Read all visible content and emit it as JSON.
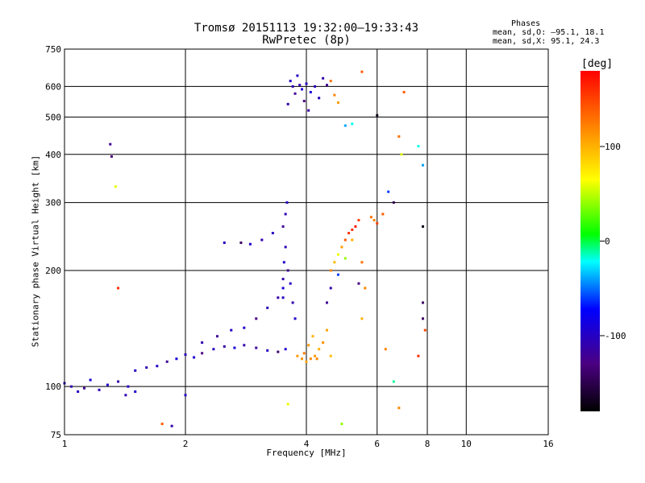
{
  "chart_data": {
    "type": "scatter",
    "title_line1": "Tromsø 20151113 19:32:00–19:33:43",
    "title_line2": "RwPretec (8p)",
    "phases": {
      "heading": "Phases",
      "o_mode": "mean, sd,O: –95.1, 18.1",
      "x_mode": "mean, sd,X:  95.1, 24.3"
    },
    "xlabel": "Frequency [MHz]",
    "ylabel": "Stationary phase Virtual Height [km]",
    "x_scale": "log",
    "y_scale": "log",
    "xlim": [
      1,
      16
    ],
    "ylim": [
      75,
      750
    ],
    "x_ticks": [
      1,
      2,
      4,
      6,
      8,
      10,
      16
    ],
    "y_ticks": [
      75,
      100,
      200,
      300,
      400,
      500,
      600,
      750
    ],
    "grid": true,
    "colorbar": {
      "label": "[deg]",
      "ticks": [
        100,
        0,
        -100
      ],
      "range": [
        -180,
        180
      ]
    },
    "series": [
      {
        "points": [
          [
            1.0,
            102,
            -95
          ],
          [
            1.04,
            100,
            -110
          ],
          [
            1.08,
            97,
            -100
          ],
          [
            1.12,
            99,
            -120
          ],
          [
            1.16,
            104,
            -90
          ],
          [
            1.22,
            98,
            -105
          ],
          [
            1.28,
            101,
            -95
          ],
          [
            1.36,
            103,
            -115
          ],
          [
            1.44,
            100,
            -100
          ],
          [
            1.3,
            425,
            -120
          ],
          [
            1.31,
            395,
            -130
          ],
          [
            1.34,
            330,
            60
          ],
          [
            1.36,
            180,
            160
          ],
          [
            1.5,
            110,
            -95
          ],
          [
            1.6,
            112,
            -110
          ],
          [
            1.7,
            113,
            -100
          ],
          [
            1.8,
            116,
            -120
          ],
          [
            1.9,
            118,
            -90
          ],
          [
            2.0,
            121,
            -105
          ],
          [
            2.1,
            119,
            -95
          ],
          [
            2.2,
            122,
            -130
          ],
          [
            2.35,
            125,
            -100
          ],
          [
            2.5,
            127,
            -115
          ],
          [
            2.65,
            126,
            -90
          ],
          [
            2.8,
            128,
            -110
          ],
          [
            3.0,
            126,
            -120
          ],
          [
            3.2,
            124,
            -100
          ],
          [
            3.4,
            123,
            -140
          ],
          [
            3.55,
            125,
            -95
          ],
          [
            2.2,
            130,
            -110
          ],
          [
            2.4,
            135,
            -120
          ],
          [
            2.6,
            140,
            -95
          ],
          [
            2.8,
            142,
            -100
          ],
          [
            3.0,
            150,
            -130
          ],
          [
            3.2,
            160,
            -105
          ],
          [
            3.4,
            170,
            -115
          ],
          [
            3.5,
            180,
            -90
          ],
          [
            2.5,
            236,
            -100
          ],
          [
            2.75,
            236,
            -140
          ],
          [
            2.9,
            234,
            -95
          ],
          [
            3.1,
            240,
            -110
          ],
          [
            3.3,
            250,
            -100
          ],
          [
            3.5,
            260,
            -120
          ],
          [
            3.55,
            280,
            -105
          ],
          [
            3.58,
            300,
            -100
          ],
          [
            3.5,
            170,
            -100
          ],
          [
            3.5,
            190,
            -110
          ],
          [
            3.52,
            210,
            -95
          ],
          [
            3.55,
            230,
            -105
          ],
          [
            3.6,
            200,
            -120
          ],
          [
            3.65,
            185,
            -100
          ],
          [
            3.7,
            165,
            -110
          ],
          [
            3.75,
            150,
            -95
          ],
          [
            3.8,
            120,
            110
          ],
          [
            3.9,
            118,
            115
          ],
          [
            4.0,
            116,
            105
          ],
          [
            4.1,
            118,
            120
          ],
          [
            4.2,
            120,
            110
          ],
          [
            4.3,
            125,
            100
          ],
          [
            4.4,
            130,
            115
          ],
          [
            4.5,
            140,
            105
          ],
          [
            4.6,
            120,
            95
          ],
          [
            3.95,
            122,
            125
          ],
          [
            4.05,
            128,
            110
          ],
          [
            4.15,
            135,
            100
          ],
          [
            4.25,
            118,
            120
          ],
          [
            4.6,
            200,
            120
          ],
          [
            4.7,
            210,
            95
          ],
          [
            4.8,
            220,
            60
          ],
          [
            4.9,
            230,
            110
          ],
          [
            5.0,
            240,
            140
          ],
          [
            5.1,
            250,
            155
          ],
          [
            5.2,
            255,
            160
          ],
          [
            5.3,
            260,
            170
          ],
          [
            5.4,
            270,
            150
          ],
          [
            5.2,
            240,
            100
          ],
          [
            5.0,
            215,
            40
          ],
          [
            4.8,
            195,
            -60
          ],
          [
            4.6,
            180,
            -110
          ],
          [
            4.5,
            165,
            -120
          ],
          [
            5.4,
            185,
            -130
          ],
          [
            5.5,
            210,
            130
          ],
          [
            5.6,
            180,
            120
          ],
          [
            5.5,
            150,
            100
          ],
          [
            5.8,
            275,
            130
          ],
          [
            5.9,
            270,
            120
          ],
          [
            6.0,
            265,
            150
          ],
          [
            6.2,
            280,
            140
          ],
          [
            3.6,
            540,
            -110
          ],
          [
            3.65,
            620,
            -95
          ],
          [
            3.7,
            600,
            -105
          ],
          [
            3.75,
            575,
            -120
          ],
          [
            3.8,
            640,
            -100
          ],
          [
            3.85,
            605,
            -110
          ],
          [
            3.9,
            590,
            -95
          ],
          [
            3.95,
            550,
            -130
          ],
          [
            4.0,
            610,
            -100
          ],
          [
            4.05,
            520,
            -115
          ],
          [
            4.1,
            580,
            -90
          ],
          [
            4.2,
            600,
            -105
          ],
          [
            4.3,
            560,
            -100
          ],
          [
            4.4,
            630,
            -110
          ],
          [
            4.5,
            605,
            -120
          ],
          [
            4.6,
            620,
            130
          ],
          [
            4.7,
            570,
            120
          ],
          [
            4.8,
            545,
            110
          ],
          [
            5.0,
            475,
            -40
          ],
          [
            5.2,
            480,
            -20
          ],
          [
            5.5,
            655,
            140
          ],
          [
            6.0,
            505,
            -170
          ],
          [
            6.4,
            320,
            -60
          ],
          [
            6.6,
            300,
            -150
          ],
          [
            6.8,
            445,
            130
          ],
          [
            6.9,
            400,
            60
          ],
          [
            7.0,
            580,
            140
          ],
          [
            7.6,
            420,
            -20
          ],
          [
            7.8,
            375,
            -40
          ],
          [
            7.8,
            260,
            -170
          ],
          [
            7.8,
            165,
            -140
          ],
          [
            7.8,
            150,
            -140
          ],
          [
            7.6,
            120,
            160
          ],
          [
            7.9,
            140,
            150
          ],
          [
            6.3,
            125,
            120
          ],
          [
            6.6,
            103,
            -10
          ],
          [
            6.8,
            88,
            120
          ],
          [
            4.9,
            80,
            40
          ],
          [
            3.6,
            90,
            60
          ],
          [
            2.0,
            95,
            -100
          ],
          [
            1.75,
            80,
            140
          ],
          [
            1.85,
            79,
            -110
          ],
          [
            1.5,
            97,
            -95
          ],
          [
            1.42,
            95,
            -110
          ]
        ]
      }
    ]
  }
}
